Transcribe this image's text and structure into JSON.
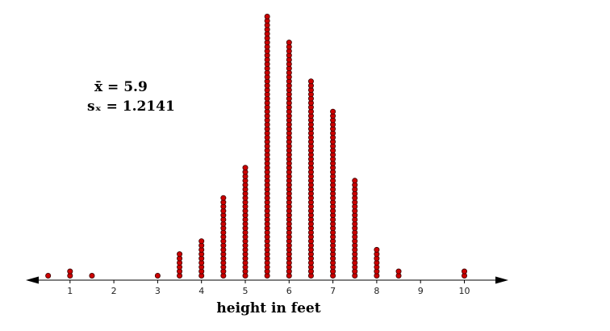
{
  "chart_data": {
    "type": "dot",
    "title": "",
    "xlabel": "height in feet",
    "ylabel": "",
    "xlim": [
      0,
      10.5
    ],
    "ticks": [
      "1",
      "2",
      "3",
      "4",
      "5",
      "6",
      "7",
      "8",
      "9",
      "10"
    ],
    "annotations": [
      {
        "label": "x̄ = ",
        "value": "5.9"
      },
      {
        "label": "sₓ = ",
        "value": "1.2141"
      }
    ],
    "dot_color": "#cc0000",
    "points": [
      {
        "x": 0.5,
        "count": 1
      },
      {
        "x": 1,
        "count": 2
      },
      {
        "x": 1.5,
        "count": 1
      },
      {
        "x": 3,
        "count": 1
      },
      {
        "x": 3.5,
        "count": 6
      },
      {
        "x": 4,
        "count": 9
      },
      {
        "x": 4.5,
        "count": 19
      },
      {
        "x": 5,
        "count": 26
      },
      {
        "x": 5.5,
        "count": 61
      },
      {
        "x": 6,
        "count": 55
      },
      {
        "x": 6.5,
        "count": 46
      },
      {
        "x": 7,
        "count": 39
      },
      {
        "x": 7.5,
        "count": 23
      },
      {
        "x": 8,
        "count": 7
      },
      {
        "x": 8.5,
        "count": 2
      },
      {
        "x": 10,
        "count": 2
      }
    ]
  }
}
